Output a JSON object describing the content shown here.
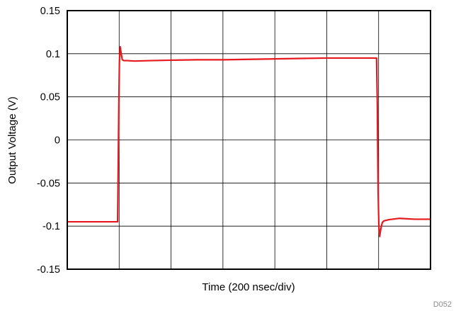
{
  "chart_data": {
    "type": "line",
    "title": "",
    "xlabel": "Time (200 nsec/div)",
    "ylabel": "Output Voltage (V)",
    "xlim": [
      0,
      7
    ],
    "ylim": [
      -0.15,
      0.15
    ],
    "x_divisions": 7,
    "yticks": [
      -0.15,
      -0.1,
      -0.05,
      0,
      0.05,
      0.1,
      0.15
    ],
    "ytick_labels": [
      "-0.15",
      "-0.1",
      "-0.05",
      "0",
      "0.05",
      "0.1",
      "0.15"
    ],
    "grid": true,
    "legend": "none",
    "series": [
      {
        "color": "#e8191e",
        "x": [
          0,
          0.5,
          0.97,
          0.98,
          0.995,
          1.005,
          1.02,
          1.04,
          1.06,
          1.09,
          1.15,
          1.3,
          1.6,
          2.0,
          2.5,
          3.0,
          3.5,
          4.0,
          4.5,
          5.0,
          5.5,
          5.96,
          5.975,
          5.99,
          6.005,
          6.02,
          6.04,
          6.07,
          6.1,
          6.2,
          6.4,
          6.7,
          7.0
        ],
        "y": [
          -0.095,
          -0.095,
          -0.095,
          -0.04,
          0.05,
          0.09,
          0.108,
          0.1,
          0.093,
          0.092,
          0.092,
          0.0915,
          0.092,
          0.0925,
          0.093,
          0.093,
          0.0935,
          0.094,
          0.0945,
          0.095,
          0.095,
          0.095,
          0.04,
          -0.06,
          -0.1,
          -0.112,
          -0.104,
          -0.096,
          -0.094,
          -0.0925,
          -0.091,
          -0.092,
          -0.092
        ]
      }
    ]
  },
  "figure_id": "D052"
}
